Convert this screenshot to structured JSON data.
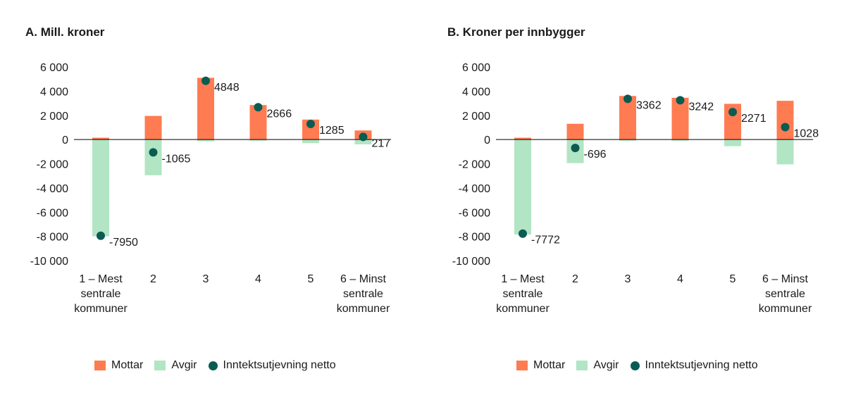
{
  "legend": {
    "mottar_label": "Mottar",
    "avgir_label": "Avgir",
    "netto_label": "Inntektsutjevning netto"
  },
  "colors": {
    "mottar": "#ff7b52",
    "avgir": "#b1e5c4",
    "netto": "#0a5c52",
    "axis": "#000000",
    "leader": "#999999"
  },
  "chart_data": [
    {
      "type": "bar",
      "title": "A. Mill. kroner",
      "categories": [
        [
          "1 – Mest",
          "sentrale",
          "kommuner"
        ],
        [
          "2"
        ],
        [
          "3"
        ],
        [
          "4"
        ],
        [
          "5"
        ],
        [
          "6 – Minst",
          "sentrale",
          "kommuner"
        ]
      ],
      "ylim": [
        -10000,
        6000
      ],
      "yticks": [
        6000,
        4000,
        2000,
        0,
        -2000,
        -4000,
        -6000,
        -8000,
        -10000
      ],
      "ytick_labels": [
        "6 000",
        "4 000",
        "2 000",
        "0",
        "-2 000",
        "-4 000",
        "-6 000",
        "-8 000",
        "-10 000"
      ],
      "series": [
        {
          "name": "Mottar",
          "values": [
            150,
            1950,
            5100,
            2850,
            1650,
            750
          ]
        },
        {
          "name": "Avgir",
          "values": [
            -8000,
            -2950,
            -150,
            -100,
            -300,
            -400
          ]
        },
        {
          "name": "Inntektsutjevning netto",
          "values": [
            -7950,
            -1065,
            4848,
            2666,
            1285,
            217
          ]
        }
      ],
      "data_labels": [
        "-7950",
        "-1065",
        "4848",
        "2666",
        "1285",
        "217"
      ]
    },
    {
      "type": "bar",
      "title": "B. Kroner per innbygger",
      "categories": [
        [
          "1 – Mest",
          "sentrale",
          "kommuner"
        ],
        [
          "2"
        ],
        [
          "3"
        ],
        [
          "4"
        ],
        [
          "5"
        ],
        [
          "6 – Minst",
          "sentrale",
          "kommuner"
        ]
      ],
      "ylim": [
        -10000,
        6000
      ],
      "yticks": [
        6000,
        4000,
        2000,
        0,
        -2000,
        -4000,
        -6000,
        -8000,
        -10000
      ],
      "ytick_labels": [
        "6 000",
        "4 000",
        "2 000",
        "0",
        "-2 000",
        "-4 000",
        "-6 000",
        "-8 000",
        "-10 000"
      ],
      "series": [
        {
          "name": "Mottar",
          "values": [
            150,
            1300,
            3600,
            3450,
            2950,
            3200
          ]
        },
        {
          "name": "Avgir",
          "values": [
            -7850,
            -1950,
            -100,
            -100,
            -550,
            -2050
          ]
        },
        {
          "name": "Inntektsutjevning netto",
          "values": [
            -7772,
            -696,
            3362,
            3242,
            2271,
            1028
          ]
        }
      ],
      "data_labels": [
        "-7772",
        "-696",
        "3362",
        "3242",
        "2271",
        "1028"
      ]
    }
  ]
}
